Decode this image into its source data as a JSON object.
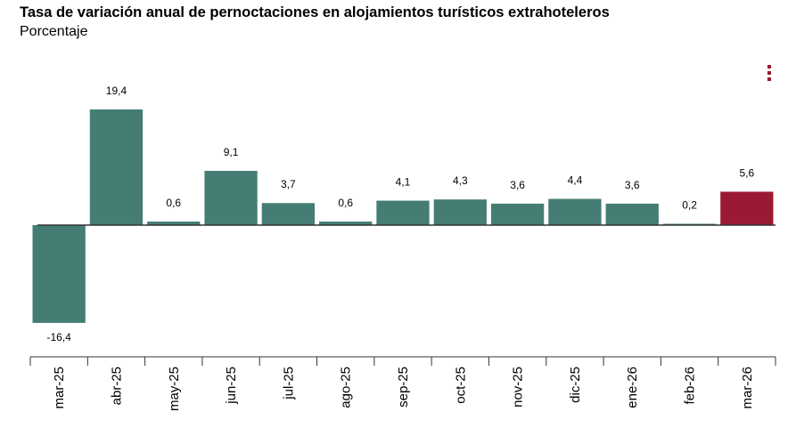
{
  "chart_data": {
    "type": "bar",
    "title": "Tasa de variación anual de pernoctaciones en alojamientos turísticos extrahoteleros",
    "subtitle": "Porcentaje",
    "xlabel": "",
    "ylabel": "",
    "categories": [
      "mar-25",
      "abr-25",
      "may-25",
      "jun-25",
      "jul-25",
      "ago-25",
      "sep-25",
      "oct-25",
      "nov-25",
      "dic-25",
      "ene-26",
      "feb-26",
      "mar-26"
    ],
    "values": [
      -16.4,
      19.4,
      0.6,
      9.1,
      3.7,
      0.6,
      4.1,
      4.3,
      3.6,
      4.4,
      3.6,
      0.2,
      5.6
    ],
    "value_labels": [
      "-16,4",
      "19,4",
      "0,6",
      "9,1",
      "3,7",
      "0,6",
      "4,1",
      "4,3",
      "3,6",
      "4,4",
      "3,6",
      "0,2",
      "5,6"
    ],
    "ylim": [
      -16.4,
      19.4
    ],
    "grid": false,
    "legend": "none",
    "bar_color": "#457d74",
    "highlight_color": "#9b1a33",
    "highlight_index": 12
  },
  "menu": {
    "icon": "more-vertical-icon",
    "color": "#9b1a33"
  }
}
